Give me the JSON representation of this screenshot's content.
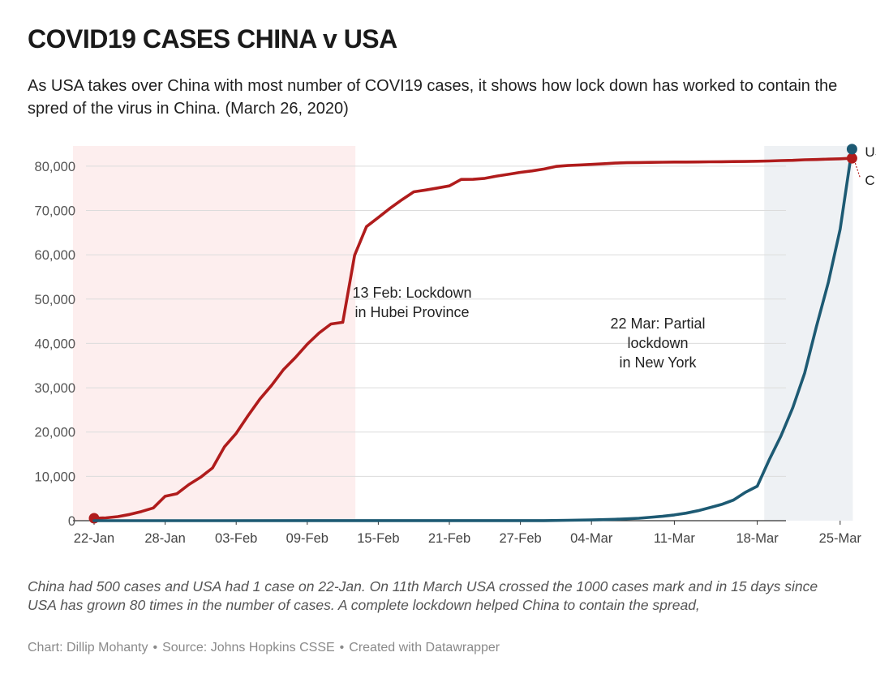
{
  "title": "COVID19 CASES CHINA v USA",
  "subtitle": "As USA takes over China with most number of COVI19 cases, it shows how lock down has worked to contain the spred of the virus in China. (March 26, 2020)",
  "notes": "China had 500 cases and USA had 1 case on 22-Jan. On 11th March USA crossed the 1000 cases mark and in 15 days since USA has grown 80 times in the number of cases. A complete lockdown helped China to contain the spread,",
  "credit": {
    "chart": "Chart: Dillip Mohanty",
    "source": "Source: Johns Hopkins CSSE",
    "created": "Created with Datawrapper",
    "separator": "•"
  },
  "chart_data": {
    "type": "line",
    "title": "COVID19 CASES CHINA v USA",
    "xlabel": "",
    "ylabel": "",
    "ylim": [
      0,
      84000
    ],
    "yticks": [
      0,
      10000,
      20000,
      30000,
      40000,
      50000,
      60000,
      70000,
      80000
    ],
    "ytick_labels": [
      "0",
      "10,000",
      "20,000",
      "30,000",
      "40,000",
      "50,000",
      "60,000",
      "70,000",
      "80,000"
    ],
    "xlim": [
      "2020-01-22",
      "2020-03-26"
    ],
    "xticks": [
      "2020-01-22",
      "2020-01-28",
      "2020-02-03",
      "2020-02-09",
      "2020-02-15",
      "2020-02-21",
      "2020-02-27",
      "2020-03-04",
      "2020-03-11",
      "2020-03-18",
      "2020-03-25"
    ],
    "xtick_labels": [
      "22-Jan",
      "28-Jan",
      "03-Feb",
      "09-Feb",
      "15-Feb",
      "21-Feb",
      "27-Feb",
      "04-Mar",
      "11-Mar",
      "18-Mar",
      "25-Mar"
    ],
    "grid": "horizontal",
    "shaded_ranges": [
      {
        "from": "2020-01-22",
        "to": "2020-02-13",
        "color": "#fdeeee"
      },
      {
        "from": "2020-03-19",
        "to": "2020-03-26",
        "color": "#eef1f4"
      }
    ],
    "annotations": [
      {
        "lines": [
          "13 Feb: Lockdown",
          "in Hubei Province"
        ]
      },
      {
        "lines": [
          "22 Mar: Partial",
          "lockdown",
          "in New York"
        ]
      }
    ],
    "series": [
      {
        "name": "CHINA",
        "color": "#b01c1c",
        "points": [
          [
            "2020-01-22",
            548
          ],
          [
            "2020-01-23",
            643
          ],
          [
            "2020-01-24",
            920
          ],
          [
            "2020-01-25",
            1406
          ],
          [
            "2020-01-26",
            2075
          ],
          [
            "2020-01-27",
            2877
          ],
          [
            "2020-01-28",
            5509
          ],
          [
            "2020-01-29",
            6087
          ],
          [
            "2020-01-30",
            8141
          ],
          [
            "2020-01-31",
            9802
          ],
          [
            "2020-02-01",
            11891
          ],
          [
            "2020-02-02",
            16630
          ],
          [
            "2020-02-03",
            19716
          ],
          [
            "2020-02-04",
            23707
          ],
          [
            "2020-02-05",
            27440
          ],
          [
            "2020-02-06",
            30587
          ],
          [
            "2020-02-07",
            34110
          ],
          [
            "2020-02-08",
            36814
          ],
          [
            "2020-02-09",
            39829
          ],
          [
            "2020-02-10",
            42354
          ],
          [
            "2020-02-11",
            44386
          ],
          [
            "2020-02-12",
            44759
          ],
          [
            "2020-02-13",
            59895
          ],
          [
            "2020-02-14",
            66358
          ],
          [
            "2020-02-15",
            68413
          ],
          [
            "2020-02-16",
            70513
          ],
          [
            "2020-02-17",
            72434
          ],
          [
            "2020-02-18",
            74211
          ],
          [
            "2020-02-19",
            74619
          ],
          [
            "2020-02-20",
            75077
          ],
          [
            "2020-02-21",
            75550
          ],
          [
            "2020-02-22",
            77001
          ],
          [
            "2020-02-23",
            77022
          ],
          [
            "2020-02-24",
            77241
          ],
          [
            "2020-02-25",
            77754
          ],
          [
            "2020-02-26",
            78166
          ],
          [
            "2020-02-27",
            78600
          ],
          [
            "2020-02-28",
            78928
          ],
          [
            "2020-02-29",
            79356
          ],
          [
            "2020-03-01",
            79932
          ],
          [
            "2020-03-02",
            80136
          ],
          [
            "2020-03-03",
            80261
          ],
          [
            "2020-03-04",
            80386
          ],
          [
            "2020-03-05",
            80537
          ],
          [
            "2020-03-06",
            80690
          ],
          [
            "2020-03-07",
            80770
          ],
          [
            "2020-03-08",
            80823
          ],
          [
            "2020-03-09",
            80860
          ],
          [
            "2020-03-10",
            80887
          ],
          [
            "2020-03-11",
            80921
          ],
          [
            "2020-03-12",
            80932
          ],
          [
            "2020-03-13",
            80945
          ],
          [
            "2020-03-14",
            80977
          ],
          [
            "2020-03-15",
            81003
          ],
          [
            "2020-03-16",
            81033
          ],
          [
            "2020-03-17",
            81058
          ],
          [
            "2020-03-18",
            81102
          ],
          [
            "2020-03-19",
            81156
          ],
          [
            "2020-03-20",
            81250
          ],
          [
            "2020-03-21",
            81305
          ],
          [
            "2020-03-22",
            81435
          ],
          [
            "2020-03-23",
            81498
          ],
          [
            "2020-03-24",
            81591
          ],
          [
            "2020-03-25",
            81661
          ],
          [
            "2020-03-26",
            81782
          ]
        ]
      },
      {
        "name": "USA",
        "color": "#1d5a73",
        "points": [
          [
            "2020-01-22",
            1
          ],
          [
            "2020-02-01",
            8
          ],
          [
            "2020-02-10",
            12
          ],
          [
            "2020-02-20",
            15
          ],
          [
            "2020-02-29",
            25
          ],
          [
            "2020-03-02",
            100
          ],
          [
            "2020-03-04",
            158
          ],
          [
            "2020-03-06",
            319
          ],
          [
            "2020-03-08",
            541
          ],
          [
            "2020-03-10",
            994
          ],
          [
            "2020-03-11",
            1301
          ],
          [
            "2020-03-12",
            1697
          ],
          [
            "2020-03-13",
            2247
          ],
          [
            "2020-03-14",
            2943
          ],
          [
            "2020-03-15",
            3680
          ],
          [
            "2020-03-16",
            4663
          ],
          [
            "2020-03-17",
            6411
          ],
          [
            "2020-03-18",
            7786
          ],
          [
            "2020-03-19",
            13680
          ],
          [
            "2020-03-20",
            19101
          ],
          [
            "2020-03-21",
            25493
          ],
          [
            "2020-03-22",
            33276
          ],
          [
            "2020-03-23",
            43847
          ],
          [
            "2020-03-24",
            53740
          ],
          [
            "2020-03-25",
            65778
          ],
          [
            "2020-03-26",
            83836
          ]
        ]
      }
    ]
  }
}
